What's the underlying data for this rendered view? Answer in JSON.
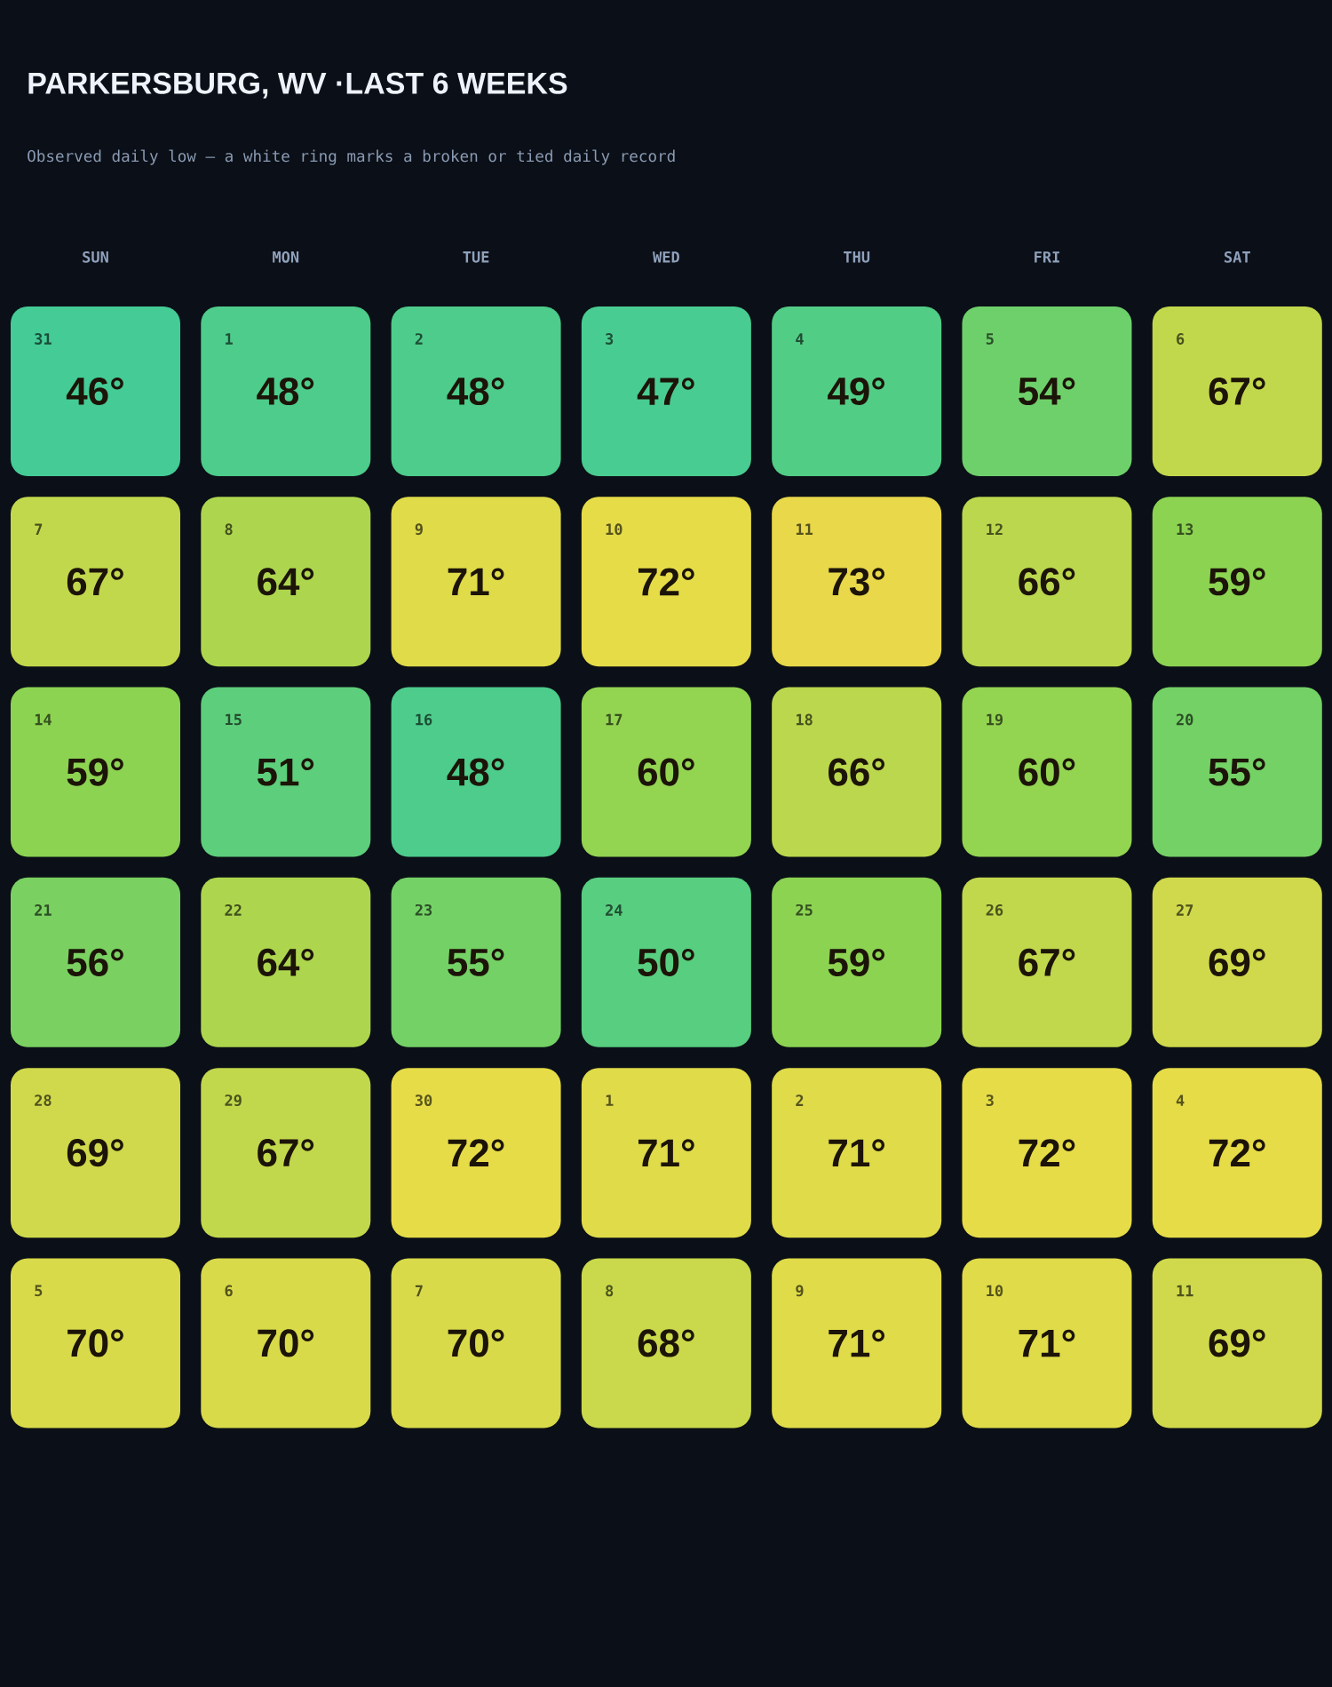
{
  "chart_data": {
    "type": "heatmap",
    "title": "PARKERSBURG, WV ·LAST 6 WEEKS",
    "subtitle": "Observed daily low — a white ring marks a broken or tied daily record",
    "categories": [
      "SUN",
      "MON",
      "TUE",
      "WED",
      "THU",
      "FRI",
      "SAT"
    ],
    "y_categories": [
      null,
      null,
      null,
      null,
      null,
      null
    ],
    "cells": [
      [
        46,
        48,
        48,
        47,
        49,
        54,
        67
      ],
      [
        67,
        64,
        71,
        72,
        73,
        66,
        59
      ],
      [
        59,
        51,
        48,
        60,
        66,
        60,
        55
      ],
      [
        56,
        64,
        55,
        50,
        59,
        67,
        69
      ],
      [
        69,
        67,
        72,
        71,
        71,
        72,
        72
      ],
      [
        70,
        70,
        70,
        68,
        71,
        71,
        69
      ]
    ],
    "cell_labels": [
      [
        "46°",
        "48°",
        "48°",
        "47°",
        "49°",
        "54°",
        "67°"
      ],
      [
        "67°",
        "64°",
        "71°",
        "72°",
        "73°",
        "66°",
        "59°"
      ],
      [
        "59°",
        "51°",
        "48°",
        "60°",
        "66°",
        "60°",
        "55°"
      ],
      [
        "56°",
        "64°",
        "55°",
        "50°",
        "59°",
        "67°",
        "69°"
      ],
      [
        "69°",
        "67°",
        "72°",
        "71°",
        "71°",
        "72°",
        "72°"
      ],
      [
        "70°",
        "70°",
        "70°",
        "68°",
        "71°",
        "71°",
        "69°"
      ]
    ],
    "annotations": [
      "31",
      "1",
      "2",
      "3",
      "4",
      "5",
      "6",
      "7",
      "8",
      "9",
      "10",
      "11",
      "12",
      "13",
      "14",
      "15",
      "16",
      "17",
      "18",
      "19",
      "20",
      "21",
      "22",
      "23",
      "24",
      "25",
      "26",
      "27",
      "28",
      "29",
      "30",
      "1",
      "2",
      "3",
      "4",
      "5",
      "6",
      "7",
      "8",
      "9",
      "10",
      "11"
    ]
  }
}
